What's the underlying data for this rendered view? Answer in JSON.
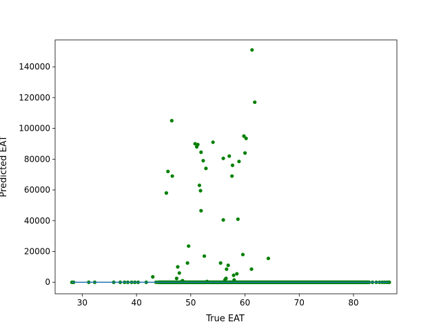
{
  "chart_data": {
    "type": "scatter",
    "title": "",
    "xlabel": "True EAT",
    "ylabel": "Predicted EAT",
    "xlim": [
      25,
      88
    ],
    "ylim": [
      -7500,
      157500
    ],
    "xticks": [
      30,
      40,
      50,
      60,
      70,
      80
    ],
    "yticks": [
      0,
      20000,
      40000,
      60000,
      80000,
      100000,
      120000,
      140000
    ],
    "colors": {
      "points": "#008000",
      "line": "#1f77b4",
      "axes": "#000000"
    },
    "grid": false,
    "series": [
      {
        "kind": "points",
        "x": [
          28.1,
          28.4,
          31.2,
          32.3,
          35.8,
          37.0,
          37.8,
          38.4,
          39.1,
          39.7,
          40.3,
          41.8,
          43.0,
          43.6,
          45.5,
          45.8,
          46.5,
          46.6,
          47.4,
          47.6,
          47.9,
          48.4,
          49.4,
          49.6,
          50.8,
          51.1,
          51.3,
          51.6,
          51.8,
          51.9,
          51.9,
          52.3,
          52.5,
          52.8,
          54.1,
          56.0,
          56.3,
          56.5,
          56.6,
          56.9,
          57.1,
          57.6,
          57.7,
          57.9,
          58.5,
          58.7,
          58.9,
          59.6,
          59.8,
          60.0,
          60.2,
          61.2,
          61.3,
          61.8,
          64.3,
          55.5,
          56.0,
          48.5,
          53.0,
          58.0
        ],
        "y": [
          0,
          0,
          0,
          0,
          0,
          0,
          0,
          0,
          0,
          0,
          0,
          0,
          3500,
          0,
          58000,
          72000,
          105000,
          69000,
          2500,
          10000,
          6000,
          800,
          12500,
          23500,
          90000,
          88000,
          89500,
          63000,
          59500,
          46500,
          84500,
          79000,
          17000,
          74000,
          91000,
          40500,
          1500,
          2500,
          8500,
          11000,
          82000,
          69000,
          76000,
          4500,
          5500,
          41000,
          78500,
          18000,
          95000,
          84000,
          93500,
          8500,
          151000,
          117000,
          15500,
          12500,
          80500,
          1000,
          500,
          1500
        ]
      },
      {
        "kind": "dense-band",
        "x_range": [
          44.0,
          83.0
        ],
        "y": 0
      },
      {
        "kind": "sparse-tail",
        "x": [
          83.5,
          84.2,
          84.8,
          85.3,
          85.7,
          86.1,
          86.4,
          86.6
        ],
        "y": [
          0,
          0,
          0,
          0,
          0,
          0,
          0,
          0
        ]
      },
      {
        "kind": "line",
        "x": [
          28.0,
          86.6
        ],
        "y": [
          0,
          0
        ]
      }
    ]
  }
}
